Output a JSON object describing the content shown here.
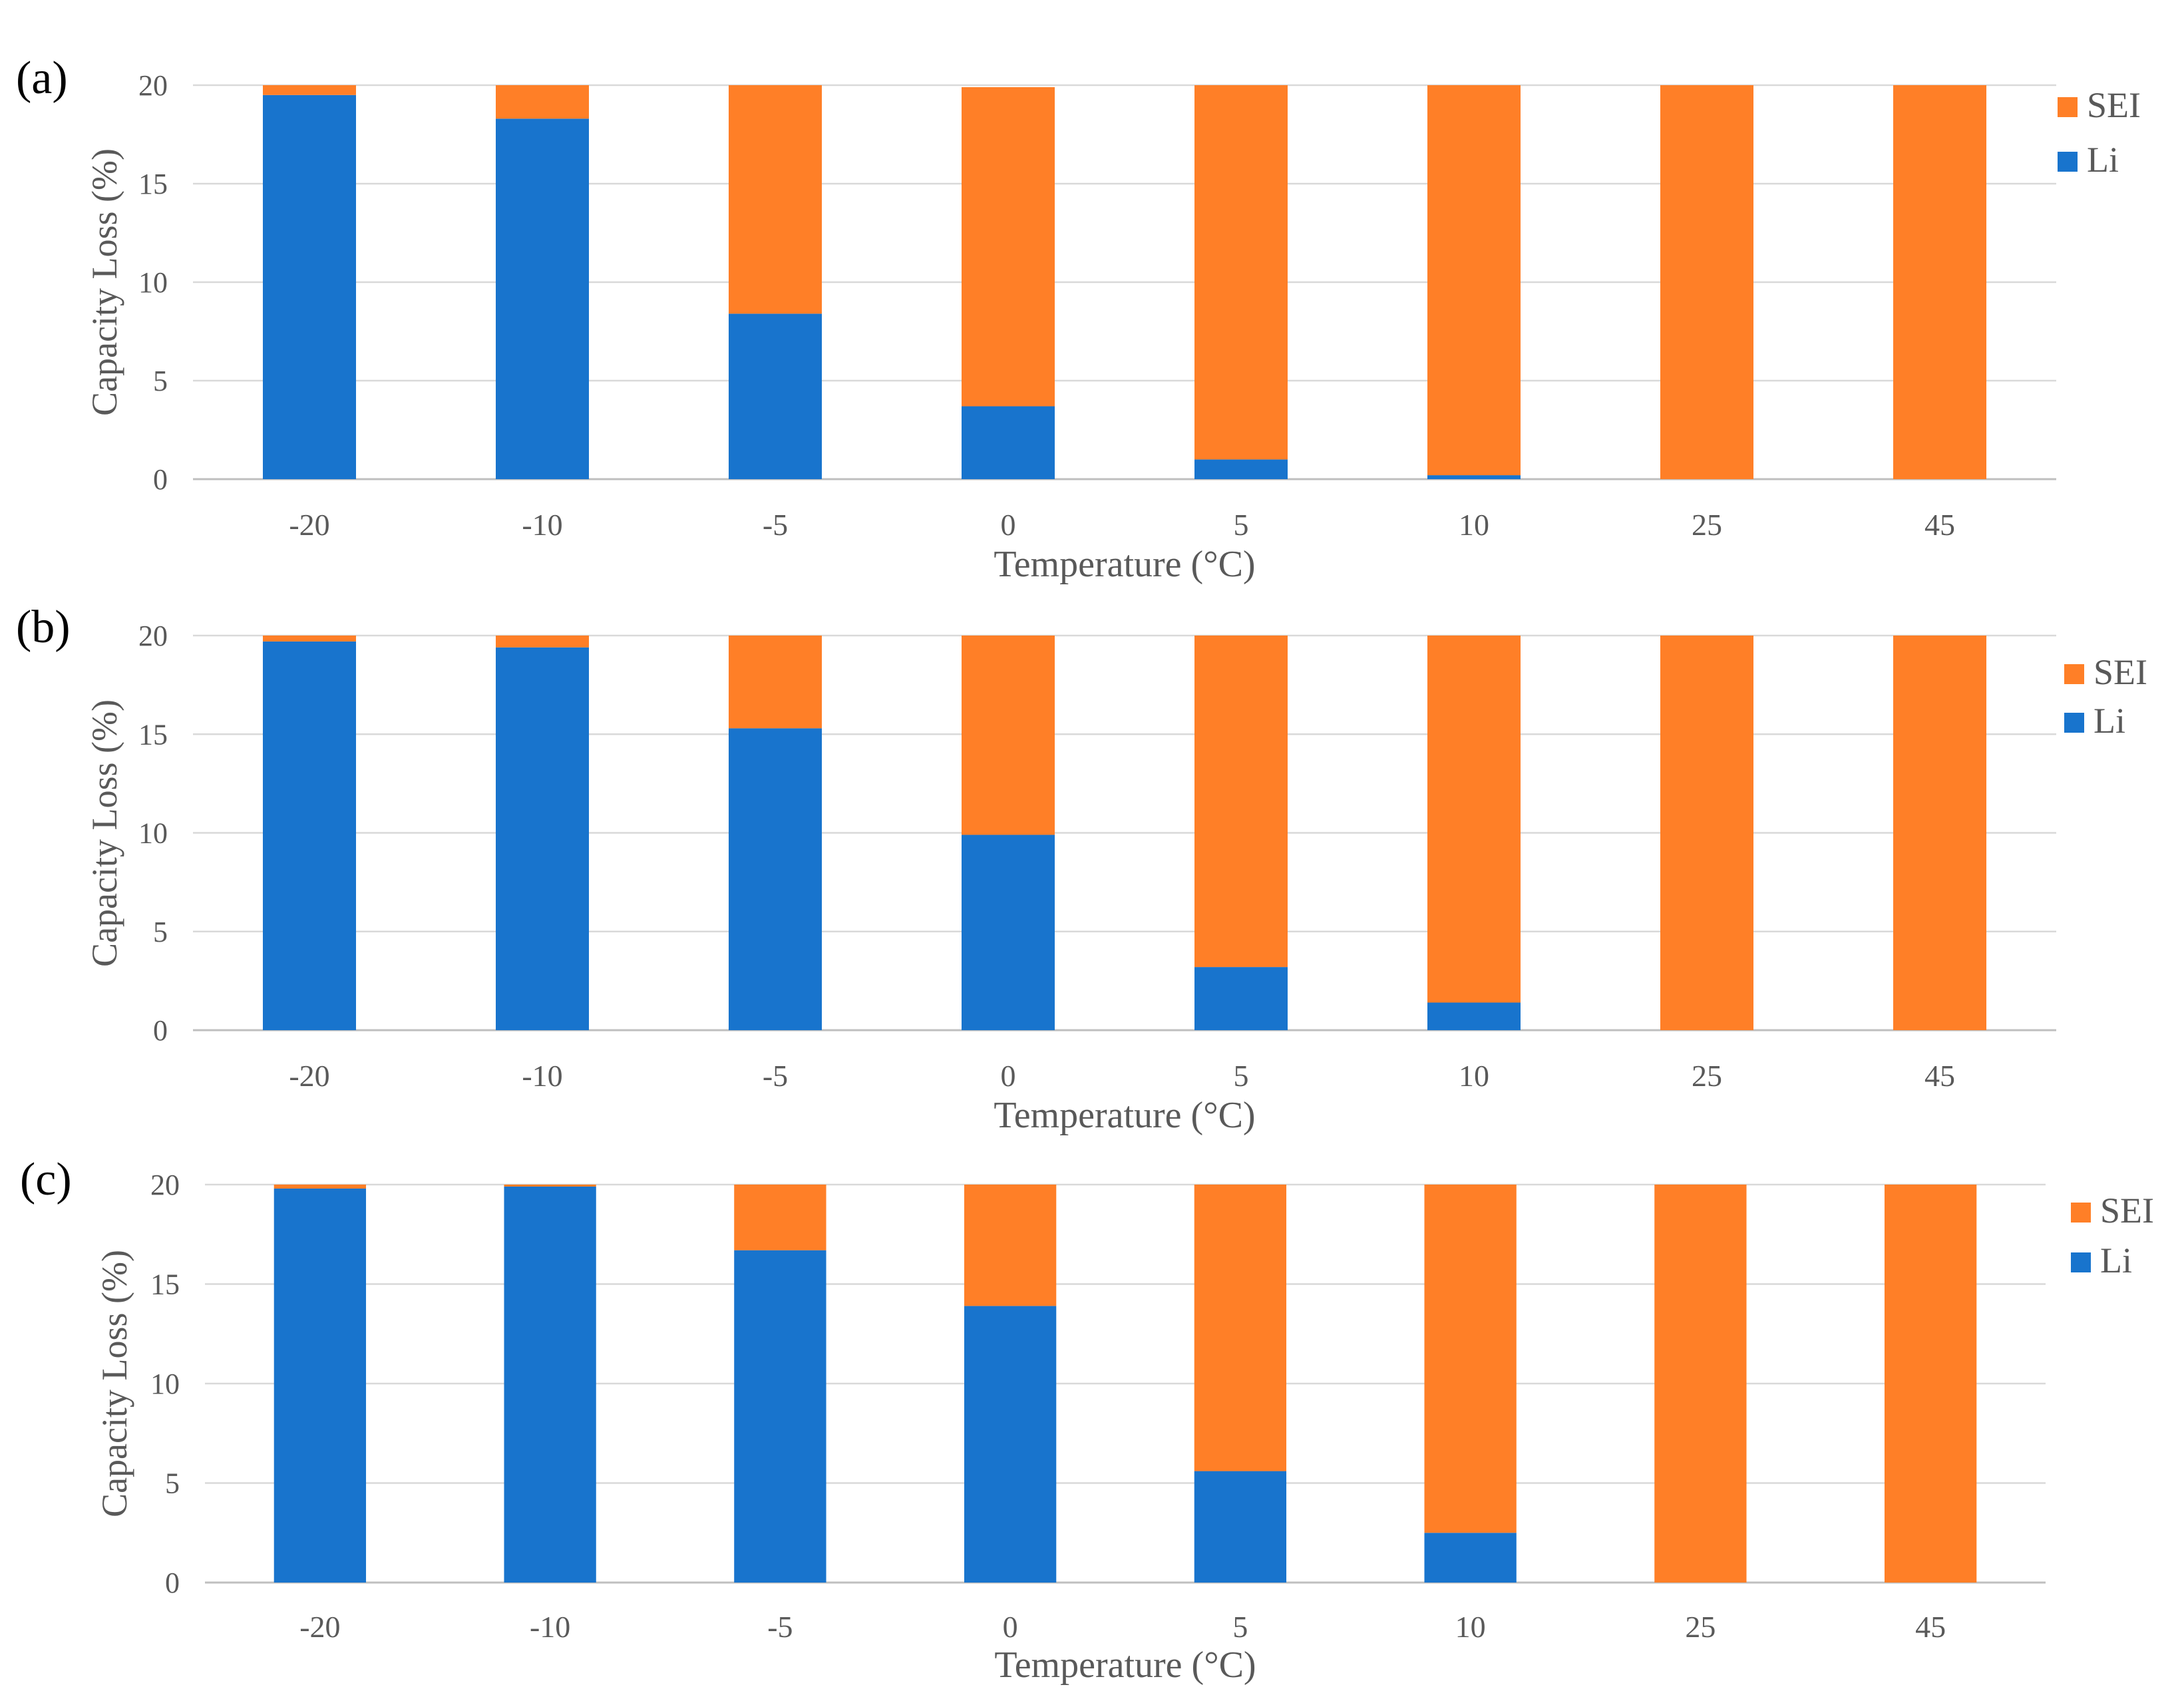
{
  "colors": {
    "sei": "#FF7F27",
    "li": "#1874CD",
    "grid": "#D9D9D9",
    "axis": "#BFBFBF",
    "text": "#595959",
    "panel_label": "#000000"
  },
  "chart_data": [
    {
      "type": "bar",
      "stacked": true,
      "panel_label": "(a)",
      "categories": [
        "-20",
        "-10",
        "-5",
        "0",
        "5",
        "10",
        "25",
        "45"
      ],
      "series": [
        {
          "name": "Li",
          "values": [
            19.5,
            18.3,
            8.4,
            3.7,
            1.0,
            0.2,
            0,
            0
          ]
        },
        {
          "name": "SEI",
          "values": [
            0.5,
            1.7,
            11.6,
            16.2,
            19.0,
            19.8,
            20,
            20
          ]
        }
      ],
      "xlabel": "Temperature (°C)",
      "ylabel": "Capacity Loss (%)",
      "ylim": [
        0,
        20
      ],
      "yticks": [
        "0",
        "5",
        "10",
        "15",
        "20"
      ],
      "legend": [
        "SEI",
        "Li"
      ],
      "legend_position": "right",
      "grid": true
    },
    {
      "type": "bar",
      "stacked": true,
      "panel_label": "(b)",
      "categories": [
        "-20",
        "-10",
        "-5",
        "0",
        "5",
        "10",
        "25",
        "45"
      ],
      "series": [
        {
          "name": "Li",
          "values": [
            19.7,
            19.4,
            15.3,
            9.9,
            3.2,
            1.4,
            0,
            0
          ]
        },
        {
          "name": "SEI",
          "values": [
            0.3,
            0.6,
            4.7,
            10.1,
            16.8,
            18.6,
            20,
            20
          ]
        }
      ],
      "xlabel": "Temperature (°C)",
      "ylabel": "Capacity Loss (%)",
      "ylim": [
        0,
        20
      ],
      "yticks": [
        "0",
        "5",
        "10",
        "15",
        "20"
      ],
      "legend": [
        "SEI",
        "Li"
      ],
      "legend_position": "right",
      "grid": true
    },
    {
      "type": "bar",
      "stacked": true,
      "panel_label": "(c)",
      "categories": [
        "-20",
        "-10",
        "-5",
        "0",
        "5",
        "10",
        "25",
        "45"
      ],
      "series": [
        {
          "name": "Li",
          "values": [
            19.8,
            19.9,
            16.7,
            13.9,
            5.6,
            2.5,
            0,
            0
          ]
        },
        {
          "name": "SEI",
          "values": [
            0.2,
            0.1,
            3.3,
            6.1,
            14.4,
            17.5,
            20,
            20
          ]
        }
      ],
      "xlabel": "Temperature (°C)",
      "ylabel": "Capacity Loss (%)",
      "ylim": [
        0,
        20
      ],
      "yticks": [
        "0",
        "5",
        "10",
        "15",
        "20"
      ],
      "legend": [
        "SEI",
        "Li"
      ],
      "legend_position": "right",
      "grid": true
    }
  ]
}
